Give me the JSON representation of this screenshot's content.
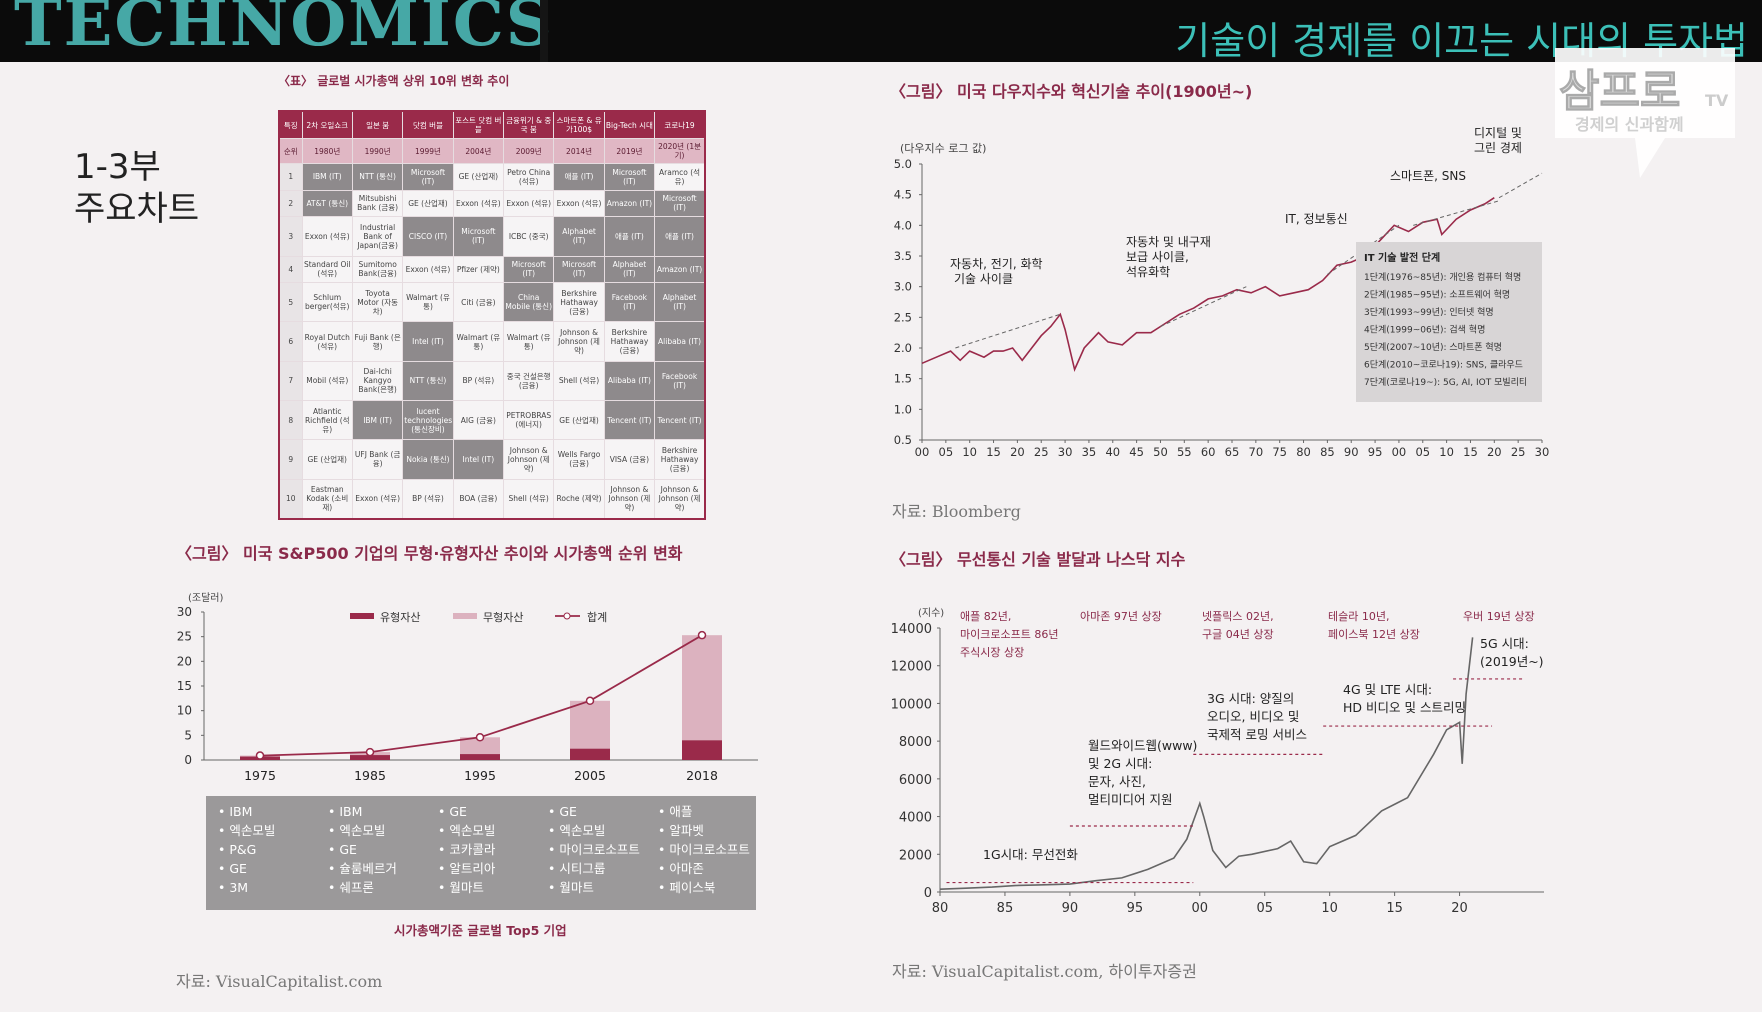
{
  "header": {
    "brand": "TECHNOMICS",
    "headline": "기술이 경제를 이끄는 시대의 투자법",
    "logo_text": "삼프로",
    "logo_tv": "TV",
    "logo_sub": "경제의 신과함께"
  },
  "section_label_line1": "1-3부",
  "section_label_line2": "주요차트",
  "colors": {
    "accent": "#9a2a4a",
    "light": "#e0b7c4",
    "teal": "#3cc0b8"
  },
  "table": {
    "caption": "〈표〉 글로벌 시가총액 상위 10위 변화 추이",
    "row_header_label": "특징",
    "headers": [
      "2차 오일쇼크",
      "일본 붐",
      "닷컴 버블",
      "포스트 닷컴 버블",
      "금융위기 & 중국 붐",
      "스마트폰 & 유가100$",
      "Big-Tech 시대",
      "코로나19"
    ],
    "rank_label": "순위",
    "years": [
      "1980년",
      "1990년",
      "1999년",
      "2004년",
      "2009년",
      "2014년",
      "2019년",
      "2020년 (1분기)"
    ],
    "rows": [
      {
        "rank": "1",
        "cells": [
          "IBM (IT)",
          "NTT (통신)",
          "Microsoft (IT)",
          "GE (산업재)",
          "Petro China (석유)",
          "애플 (IT)",
          "Microsoft (IT)",
          "Aramco (석유)"
        ]
      },
      {
        "rank": "2",
        "cells": [
          "AT&T (통신)",
          "Mitsubishi Bank (금융)",
          "GE (산업재)",
          "Exxon (석유)",
          "Exxon (석유)",
          "Exxon (석유)",
          "Amazon (IT)",
          "Microsoft (IT)"
        ]
      },
      {
        "rank": "3",
        "cells": [
          "Exxon (석유)",
          "Industrial Bank of Japan(금융)",
          "CISCO (IT)",
          "Microsoft (IT)",
          "ICBC (중국)",
          "Alphabet (IT)",
          "애플 (IT)",
          "애플 (IT)"
        ]
      },
      {
        "rank": "4",
        "cells": [
          "Standard Oil (석유)",
          "Sumitomo Bank(금융)",
          "Exxon (석유)",
          "Pfizer (제약)",
          "Microsoft (IT)",
          "Microsoft (IT)",
          "Alphabet (IT)",
          "Amazon (IT)"
        ]
      },
      {
        "rank": "5",
        "cells": [
          "Schlum berger(석유)",
          "Toyota Motor (자동차)",
          "Walmart (유통)",
          "Citi (금융)",
          "China Mobile (통신)",
          "Berkshire Hathaway (금융)",
          "Facebook (IT)",
          "Alphabet (IT)"
        ]
      },
      {
        "rank": "6",
        "cells": [
          "Royal Dutch (석유)",
          "Fuji Bank (은행)",
          "Intel (IT)",
          "Walmart (유통)",
          "Walmart (유통)",
          "Johnson & Johnson (제약)",
          "Berkshire Hathaway (금융)",
          "Alibaba (IT)"
        ]
      },
      {
        "rank": "7",
        "cells": [
          "Mobil (석유)",
          "Dai-Ichi Kangyo Bank(은행)",
          "NTT (통신)",
          "BP (석유)",
          "중국 건설은행 (금융)",
          "Shell (석유)",
          "Alibaba (IT)",
          "Facebook (IT)"
        ]
      },
      {
        "rank": "8",
        "cells": [
          "Atlantic Richfield (석유)",
          "IBM (IT)",
          "lucent technologies (통신장비)",
          "AIG (금융)",
          "PETROBRAS (에너지)",
          "GE (산업재)",
          "Tencent (IT)",
          "Tencent (IT)"
        ]
      },
      {
        "rank": "9",
        "cells": [
          "GE (산업재)",
          "UFJ Bank (금융)",
          "Nokia (통신)",
          "Intel (IT)",
          "Johnson & Johnson (제약)",
          "Wells Fargo (금융)",
          "VISA (금융)",
          "Berkshire Hathaway (금융)"
        ]
      },
      {
        "rank": "10",
        "cells": [
          "Eastman Kodak (소비재)",
          "Exxon (석유)",
          "BP (석유)",
          "BOA (금융)",
          "Shell (석유)",
          "Roche (제약)",
          "Johnson & Johnson (제약)",
          "Johnson & Johnson (제약)"
        ]
      }
    ],
    "highlight": [
      [
        true,
        true,
        true,
        false,
        false,
        true,
        true,
        false
      ],
      [
        true,
        false,
        false,
        false,
        false,
        false,
        true,
        true
      ],
      [
        false,
        false,
        true,
        true,
        false,
        true,
        true,
        true
      ],
      [
        false,
        false,
        false,
        false,
        true,
        true,
        true,
        true
      ],
      [
        false,
        false,
        false,
        false,
        true,
        false,
        true,
        true
      ],
      [
        false,
        false,
        true,
        false,
        false,
        false,
        false,
        true
      ],
      [
        false,
        false,
        true,
        false,
        false,
        false,
        true,
        true
      ],
      [
        false,
        true,
        true,
        false,
        false,
        false,
        true,
        true
      ],
      [
        false,
        false,
        true,
        true,
        false,
        false,
        false,
        false
      ],
      [
        false,
        false,
        false,
        false,
        false,
        false,
        false,
        false
      ]
    ]
  },
  "chart_data": [
    {
      "type": "line",
      "title": "〈그림〉 미국 다우지수와 혁신기술 추이(1900년~)",
      "ylabel": "(다우지수 로그 값)",
      "ylim": [
        0.5,
        5.0
      ],
      "yticks": [
        "0.5",
        "1.0",
        "1.5",
        "2.0",
        "2.5",
        "3.0",
        "3.5",
        "4.0",
        "4.5",
        "5.0"
      ],
      "xticks": [
        "00",
        "05",
        "10",
        "15",
        "20",
        "25",
        "30",
        "35",
        "40",
        "45",
        "50",
        "55",
        "60",
        "65",
        "70",
        "75",
        "80",
        "85",
        "90",
        "95",
        "00",
        "05",
        "10",
        "15",
        "20",
        "25",
        "30"
      ],
      "x": [
        1900,
        1903,
        1906,
        1908,
        1910,
        1913,
        1915,
        1917,
        1919,
        1921,
        1923,
        1925,
        1927,
        1929,
        1930,
        1932,
        1934,
        1937,
        1939,
        1942,
        1945,
        1948,
        1951,
        1954,
        1957,
        1960,
        1963,
        1966,
        1969,
        1972,
        1975,
        1978,
        1981,
        1984,
        1987,
        1990,
        1993,
        1996,
        1999,
        2002,
        2005,
        2008,
        2009,
        2012,
        2015,
        2018,
        2020
      ],
      "y": [
        1.75,
        1.85,
        1.95,
        1.8,
        1.95,
        1.85,
        1.95,
        1.95,
        2.0,
        1.8,
        2.0,
        2.2,
        2.35,
        2.55,
        2.3,
        1.65,
        2.0,
        2.25,
        2.1,
        2.05,
        2.25,
        2.25,
        2.4,
        2.55,
        2.65,
        2.8,
        2.85,
        2.95,
        2.9,
        3.0,
        2.85,
        2.9,
        2.95,
        3.1,
        3.35,
        3.4,
        3.5,
        3.75,
        4.0,
        3.9,
        4.05,
        4.1,
        3.85,
        4.1,
        4.25,
        4.35,
        4.45
      ],
      "annotations": [
        "자동차, 전기, 화학",
        "기술 사이클",
        "자동차 및 내구재",
        "보급 사이클,",
        "석유화학",
        "IT, 정보통신",
        "스마트폰, SNS",
        "디지털 및",
        "그린 경제"
      ],
      "legend_title": "IT 기술 발전 단계",
      "legend": [
        "1단계(1976~85년): 개인용 컴퓨터 혁명",
        "2단계(1985~95년): 소프트웨어 혁명",
        "3단계(1993~99년): 인터넷 혁명",
        "4단계(1999~06년): 검색 혁명",
        "5단계(2007~10년): 스마트폰 혁명",
        "6단계(2010~코로나19): SNS, 클라우드",
        "7단계(코로나19~): 5G, AI, IOT 모빌리티"
      ],
      "source": "자료: Bloomberg"
    },
    {
      "type": "bar",
      "title": "〈그림〉 미국 S&P500 기업의 무형·유형자산 추이와 시가총액 순위 변화",
      "ylabel": "(조달러)",
      "ylim": [
        0,
        30
      ],
      "yticks": [
        "0",
        "5",
        "10",
        "15",
        "20",
        "25",
        "30"
      ],
      "categories": [
        "1975",
        "1985",
        "1995",
        "2005",
        "2018"
      ],
      "series": [
        {
          "name": "유형자산",
          "values": [
            0.7,
            1.0,
            1.2,
            2.3,
            4.0
          ]
        },
        {
          "name": "무형자산",
          "values": [
            0.2,
            0.6,
            3.4,
            9.7,
            21.3
          ]
        },
        {
          "name": "합계",
          "values": [
            0.9,
            1.6,
            4.6,
            12.0,
            25.3
          ]
        }
      ],
      "top5_caption": "시가총액기준 글로벌 Top5 기업",
      "top5": [
        [
          "• IBM",
          "• 엑손모빌",
          "• P&G",
          "• GE",
          "• 3M"
        ],
        [
          "• IBM",
          "• 엑손모빌",
          "• GE",
          "• 슐룸베르거",
          "• 쉐프론"
        ],
        [
          "• GE",
          "• 엑손모빌",
          "• 코카콜라",
          "• 알트리아",
          "• 월마트"
        ],
        [
          "• GE",
          "• 엑손모빌",
          "• 마이크로소프트",
          "• 시티그룹",
          "• 월마트"
        ],
        [
          "• 애플",
          "• 알파벳",
          "• 마이크로소프트",
          "• 아마존",
          "• 페이스북"
        ]
      ],
      "source": "자료: VisualCapitalist.com"
    },
    {
      "type": "line",
      "title": "〈그림〉 무선통신 기술 발달과 나스닥 지수",
      "ylabel": "(지수)",
      "ylim": [
        0,
        14000
      ],
      "yticks": [
        "0",
        "2000",
        "4000",
        "6000",
        "8000",
        "10000",
        "12000",
        "14000"
      ],
      "xticks": [
        "80",
        "85",
        "90",
        "95",
        "00",
        "05",
        "10",
        "15",
        "20"
      ],
      "x": [
        1980,
        1982,
        1984,
        1986,
        1988,
        1990,
        1992,
        1994,
        1996,
        1998,
        1999,
        2000,
        2000.3,
        2001,
        2002,
        2003,
        2004,
        2006,
        2007,
        2008,
        2009,
        2010,
        2012,
        2014,
        2016,
        2018,
        2019,
        2020,
        2020.2,
        2020.5,
        2021
      ],
      "y": [
        150,
        200,
        260,
        350,
        380,
        420,
        600,
        750,
        1200,
        1800,
        2800,
        4700,
        4000,
        2200,
        1300,
        1900,
        2000,
        2300,
        2700,
        1600,
        1500,
        2400,
        3000,
        4300,
        5000,
        7300,
        8600,
        9000,
        6800,
        10500,
        13500
      ],
      "top_notes": [
        [
          "애플 82년,",
          "마이크로소프트 86년",
          "주식시장 상장"
        ],
        [
          "아마존 97년 상장"
        ],
        [
          "넷플릭스 02년,",
          "구글 04년 상장"
        ],
        [
          "테슬라 10년,",
          "페이스북 12년 상장"
        ],
        [
          "우버 19년 상장"
        ]
      ],
      "eras": [
        [
          "1G시대: 무선전화"
        ],
        [
          "월드와이드웹(www)",
          "및 2G 시대:",
          "문자, 사진,",
          "멀티미디어 지원"
        ],
        [
          "3G 시대: 양질의",
          "오디오, 비디오 및",
          "국제적 로밍 서비스"
        ],
        [
          "4G 및 LTE 시대:",
          "HD 비디오 및 스트리밍"
        ],
        [
          "5G 시대:",
          "(2019년~)"
        ]
      ],
      "source": "자료: VisualCapitalist.com, 하이투자증권"
    }
  ]
}
